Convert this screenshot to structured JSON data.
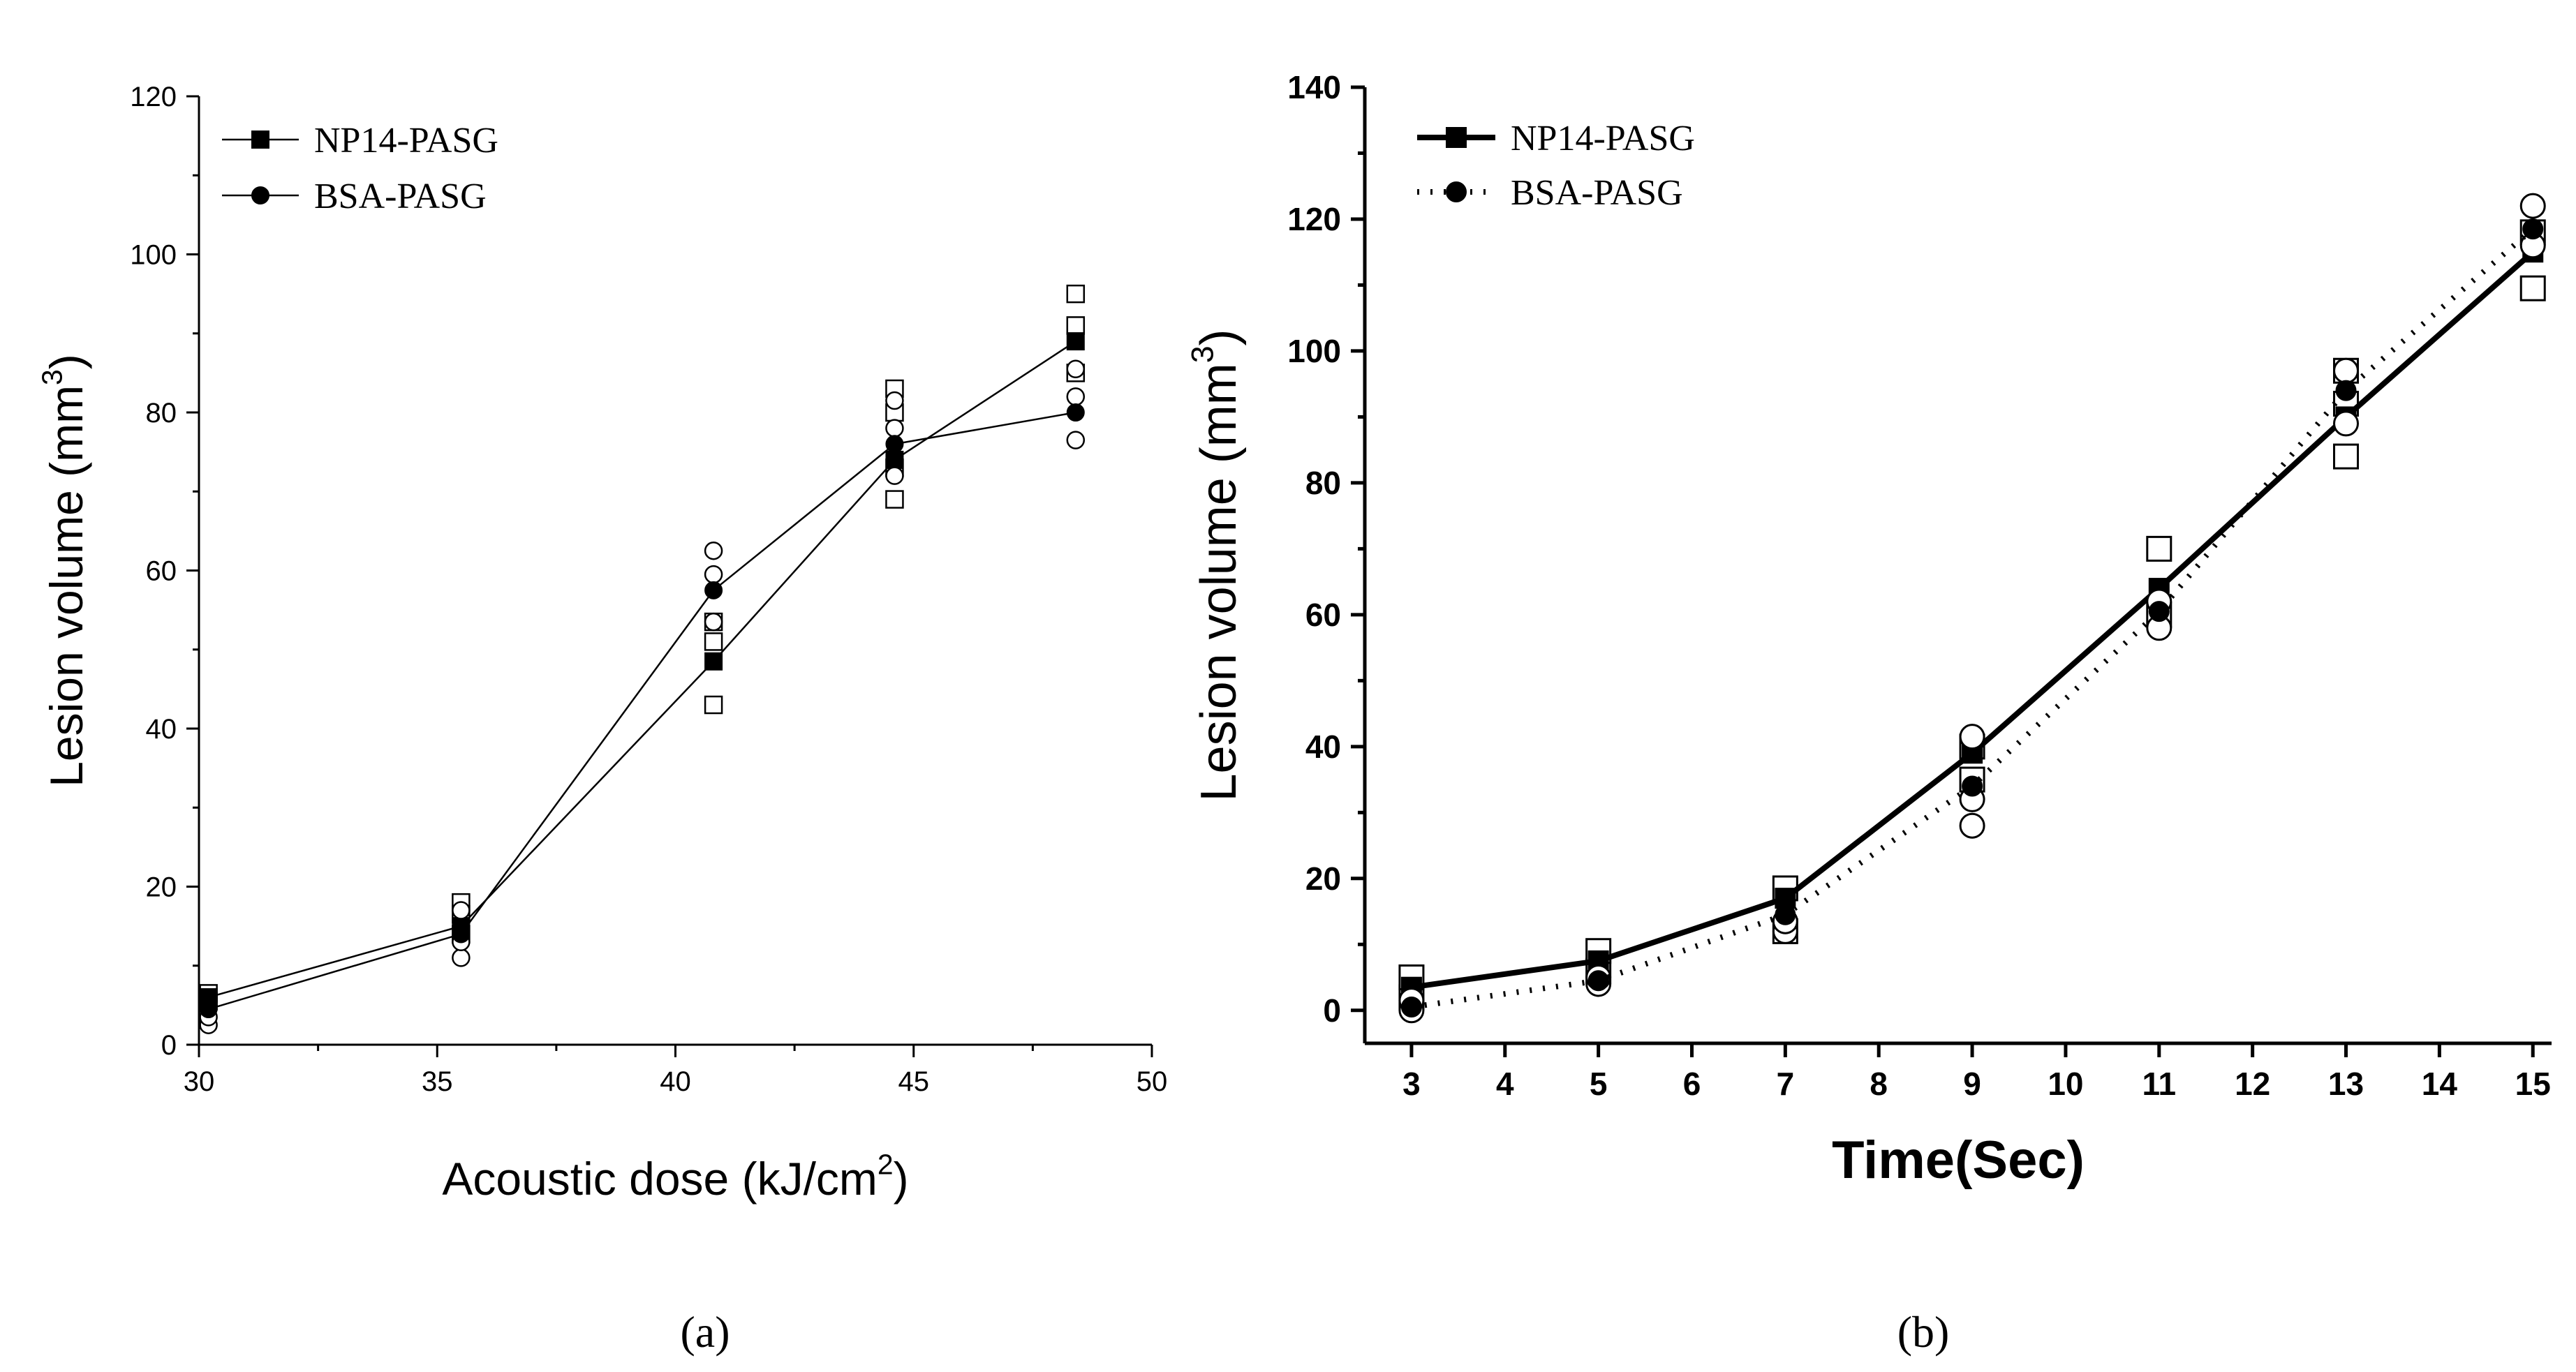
{
  "chart_data": [
    {
      "panel": "(a)",
      "type": "line",
      "xlabel": "Acoustic dose (kJ/cm",
      "xlabel_sup": "2",
      "xlabel_suffix": ")",
      "ylabel": "Lesion volume (mm",
      "ylabel_sup": "3",
      "ylabel_suffix": ")",
      "xlim": [
        30,
        50
      ],
      "ylim": [
        0,
        120
      ],
      "xticks": [
        "30",
        "35",
        "40",
        "45",
        "50"
      ],
      "yticks": [
        "0",
        "20",
        "40",
        "60",
        "80",
        "100",
        "120"
      ],
      "series": [
        {
          "name": "NP14-PASG",
          "marker": "square",
          "x": [
            30.2,
            35.5,
            40.8,
            44.6,
            48.4
          ],
          "y": [
            6,
            15,
            48.5,
            74,
            89
          ],
          "replicates": [
            [
              5.5,
              6.5
            ],
            [
              14,
              16.5,
              18
            ],
            [
              43,
              51,
              53.5
            ],
            [
              69,
              73,
              80,
              83
            ],
            [
              85,
              91,
              95
            ]
          ]
        },
        {
          "name": "BSA-PASG",
          "marker": "circle",
          "x": [
            30.2,
            35.5,
            40.8,
            44.6,
            48.4
          ],
          "y": [
            4.5,
            14,
            57.5,
            76,
            80
          ],
          "replicates": [
            [
              2.5,
              3.5
            ],
            [
              11,
              13,
              17
            ],
            [
              53.5,
              59.5,
              62.5
            ],
            [
              72,
              78,
              81.5
            ],
            [
              76.5,
              82,
              85.5
            ]
          ]
        }
      ]
    },
    {
      "panel": "(b)",
      "type": "line",
      "xlabel": "Time(Sec)",
      "ylabel": "Lesion volume (mm",
      "ylabel_sup": "3",
      "ylabel_suffix": ")",
      "xlim": [
        2.5,
        15.2
      ],
      "ylim": [
        -5,
        140
      ],
      "xticks": [
        "3",
        "4",
        "5",
        "6",
        "7",
        "8",
        "9",
        "10",
        "11",
        "12",
        "13",
        "14",
        "15"
      ],
      "yticks": [
        "0",
        "20",
        "40",
        "60",
        "80",
        "100",
        "120",
        "140"
      ],
      "series": [
        {
          "name": "NP14-PASG",
          "marker": "square",
          "line": "solid",
          "x": [
            3,
            5,
            7,
            9,
            11,
            13,
            15
          ],
          "y": [
            3.5,
            7.5,
            17,
            39,
            64,
            90,
            115
          ],
          "replicates": [
            [
              2,
              5
            ],
            [
              6,
              9
            ],
            [
              12,
              18.5
            ],
            [
              35,
              40
            ],
            [
              60,
              70
            ],
            [
              84,
              92,
              97
            ],
            [
              109.5,
              118
            ]
          ]
        },
        {
          "name": "BSA-PASG",
          "marker": "circle",
          "line": "dotted",
          "x": [
            3,
            5,
            7,
            9,
            11,
            13,
            15
          ],
          "y": [
            0.5,
            4.5,
            14.5,
            34,
            60.5,
            94,
            118.5
          ],
          "replicates": [
            [
              0,
              1.5
            ],
            [
              4,
              5
            ],
            [
              12,
              13.5
            ],
            [
              28,
              32,
              41.5
            ],
            [
              58,
              62
            ],
            [
              89,
              97
            ],
            [
              116,
              122
            ]
          ]
        }
      ]
    }
  ],
  "captions": {
    "a": "(a)",
    "b": "(b)"
  },
  "colors": {
    "ink": "#000000",
    "background": "#ffffff"
  }
}
